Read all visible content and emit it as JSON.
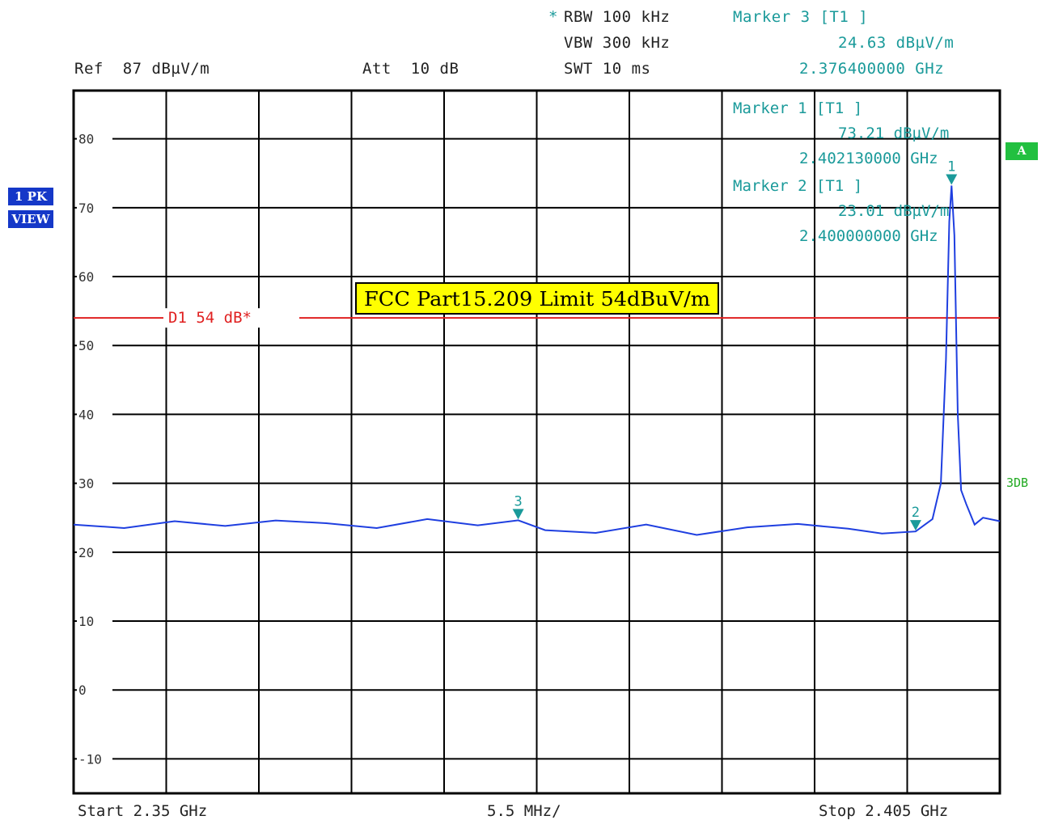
{
  "header": {
    "rbw_star": "*",
    "rbw": "RBW 100 kHz",
    "vbw": "VBW 300 kHz",
    "swt": "SWT 10 ms",
    "ref": "Ref  87 dBµV/m",
    "att": "Att  10 dB",
    "marker3_title": "Marker 3 [T1 ]",
    "marker3_level": "24.63 dBµV/m",
    "marker3_freq": "2.376400000 GHz"
  },
  "side": {
    "trace": "1 PK",
    "view": "VIEW",
    "a_badge": "A",
    "db3": "3DB"
  },
  "footer": {
    "start": "Start 2.35 GHz",
    "span": "5.5 MHz/",
    "stop": "Stop 2.405 GHz"
  },
  "colors": {
    "trace": "#1f3fe0",
    "limit": "#e02020",
    "marker": "#1a9a9a",
    "grid": "#000000"
  },
  "chart_data": {
    "type": "line",
    "title": "",
    "xlabel": "",
    "ylabel": "",
    "xlim": [
      2.35,
      2.405
    ],
    "ylim": [
      -15,
      87
    ],
    "y_ticks": [
      -10,
      0,
      10,
      20,
      30,
      40,
      50,
      60,
      70,
      80
    ],
    "x_divisions": 10,
    "grid": true,
    "limit_line": {
      "name": "D1 54 dB*",
      "value": 54,
      "annotation": "FCC Part15.209 Limit 54dBuV/m"
    },
    "markers": [
      {
        "id": "1",
        "title": "Marker 1 [T1 ]",
        "level_text": "73.21 dBµV/m",
        "freq_text": "2.402130000 GHz",
        "x": 2.40213,
        "y": 73.21
      },
      {
        "id": "2",
        "title": "Marker 2 [T1 ]",
        "level_text": "23.01 dBµV/m",
        "freq_text": "2.400000000 GHz",
        "x": 2.4,
        "y": 23.01
      },
      {
        "id": "3",
        "x": 2.3764,
        "y": 24.63
      }
    ],
    "series": [
      {
        "x": [
          2.35,
          2.353,
          2.356,
          2.359,
          2.362,
          2.365,
          2.368,
          2.371,
          2.374,
          2.3764,
          2.378,
          2.381,
          2.384,
          2.387,
          2.39,
          2.393,
          2.396,
          2.398,
          2.4,
          2.401,
          2.4015,
          2.4018,
          2.402,
          2.40213,
          2.4023,
          2.4025,
          2.4027,
          2.403,
          2.4035,
          2.404,
          2.405
        ],
        "y": [
          24,
          23.5,
          24.5,
          23.8,
          24.6,
          24.2,
          23.5,
          24.8,
          23.9,
          24.63,
          23.2,
          22.8,
          24.0,
          22.5,
          23.6,
          24.1,
          23.4,
          22.7,
          23.01,
          24.8,
          30,
          48,
          68,
          73.21,
          66,
          40,
          29,
          27,
          24,
          25,
          24.5
        ]
      }
    ]
  }
}
